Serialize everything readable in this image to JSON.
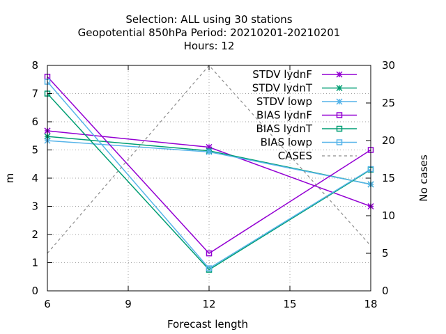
{
  "chart_data": {
    "type": "line",
    "title_lines": [
      "Selection: ALL using    30 stations",
      "Geopotential 850hPa   Period: 20210201-20210201",
      "Hours:  12"
    ],
    "xlabel": "Forecast length",
    "ylabel": "m",
    "y2label": "No cases",
    "xlim": [
      6,
      18
    ],
    "ylim": [
      0,
      8
    ],
    "y2lim": [
      0,
      30
    ],
    "xticks": [
      "6",
      "9",
      "12",
      "15",
      "18"
    ],
    "yticks": [
      "0",
      "1",
      "2",
      "3",
      "4",
      "5",
      "6",
      "7",
      "8"
    ],
    "y2ticks": [
      "0",
      "5",
      "10",
      "15",
      "20",
      "25",
      "30"
    ],
    "grid": true,
    "legend_position": "top-right",
    "x": [
      6,
      12,
      18
    ],
    "series": [
      {
        "name": "STDV lydnF",
        "color": "#9400d3",
        "marker": "x",
        "axis": "y",
        "values": [
          5.68,
          5.1,
          3.0
        ]
      },
      {
        "name": "STDV lydnT",
        "color": "#009e73",
        "marker": "x",
        "axis": "y",
        "values": [
          5.48,
          4.97,
          3.78
        ]
      },
      {
        "name": "STDV lowp",
        "color": "#56b4e9",
        "marker": "x",
        "axis": "y",
        "values": [
          5.33,
          4.93,
          3.78
        ]
      },
      {
        "name": "BIAS lydnF",
        "color": "#9400d3",
        "marker": "square",
        "axis": "y",
        "values": [
          7.6,
          1.33,
          5.0
        ]
      },
      {
        "name": "BIAS lydnT",
        "color": "#009e73",
        "marker": "square",
        "axis": "y",
        "values": [
          7.0,
          0.75,
          4.3
        ]
      },
      {
        "name": "BIAS lowp",
        "color": "#56b4e9",
        "marker": "square",
        "axis": "y",
        "values": [
          7.42,
          0.8,
          4.32
        ]
      },
      {
        "name": "CASES",
        "color": "#8c8c8c",
        "marker": "none",
        "dashed": true,
        "axis": "y2",
        "values": [
          5,
          30,
          6
        ]
      }
    ]
  }
}
